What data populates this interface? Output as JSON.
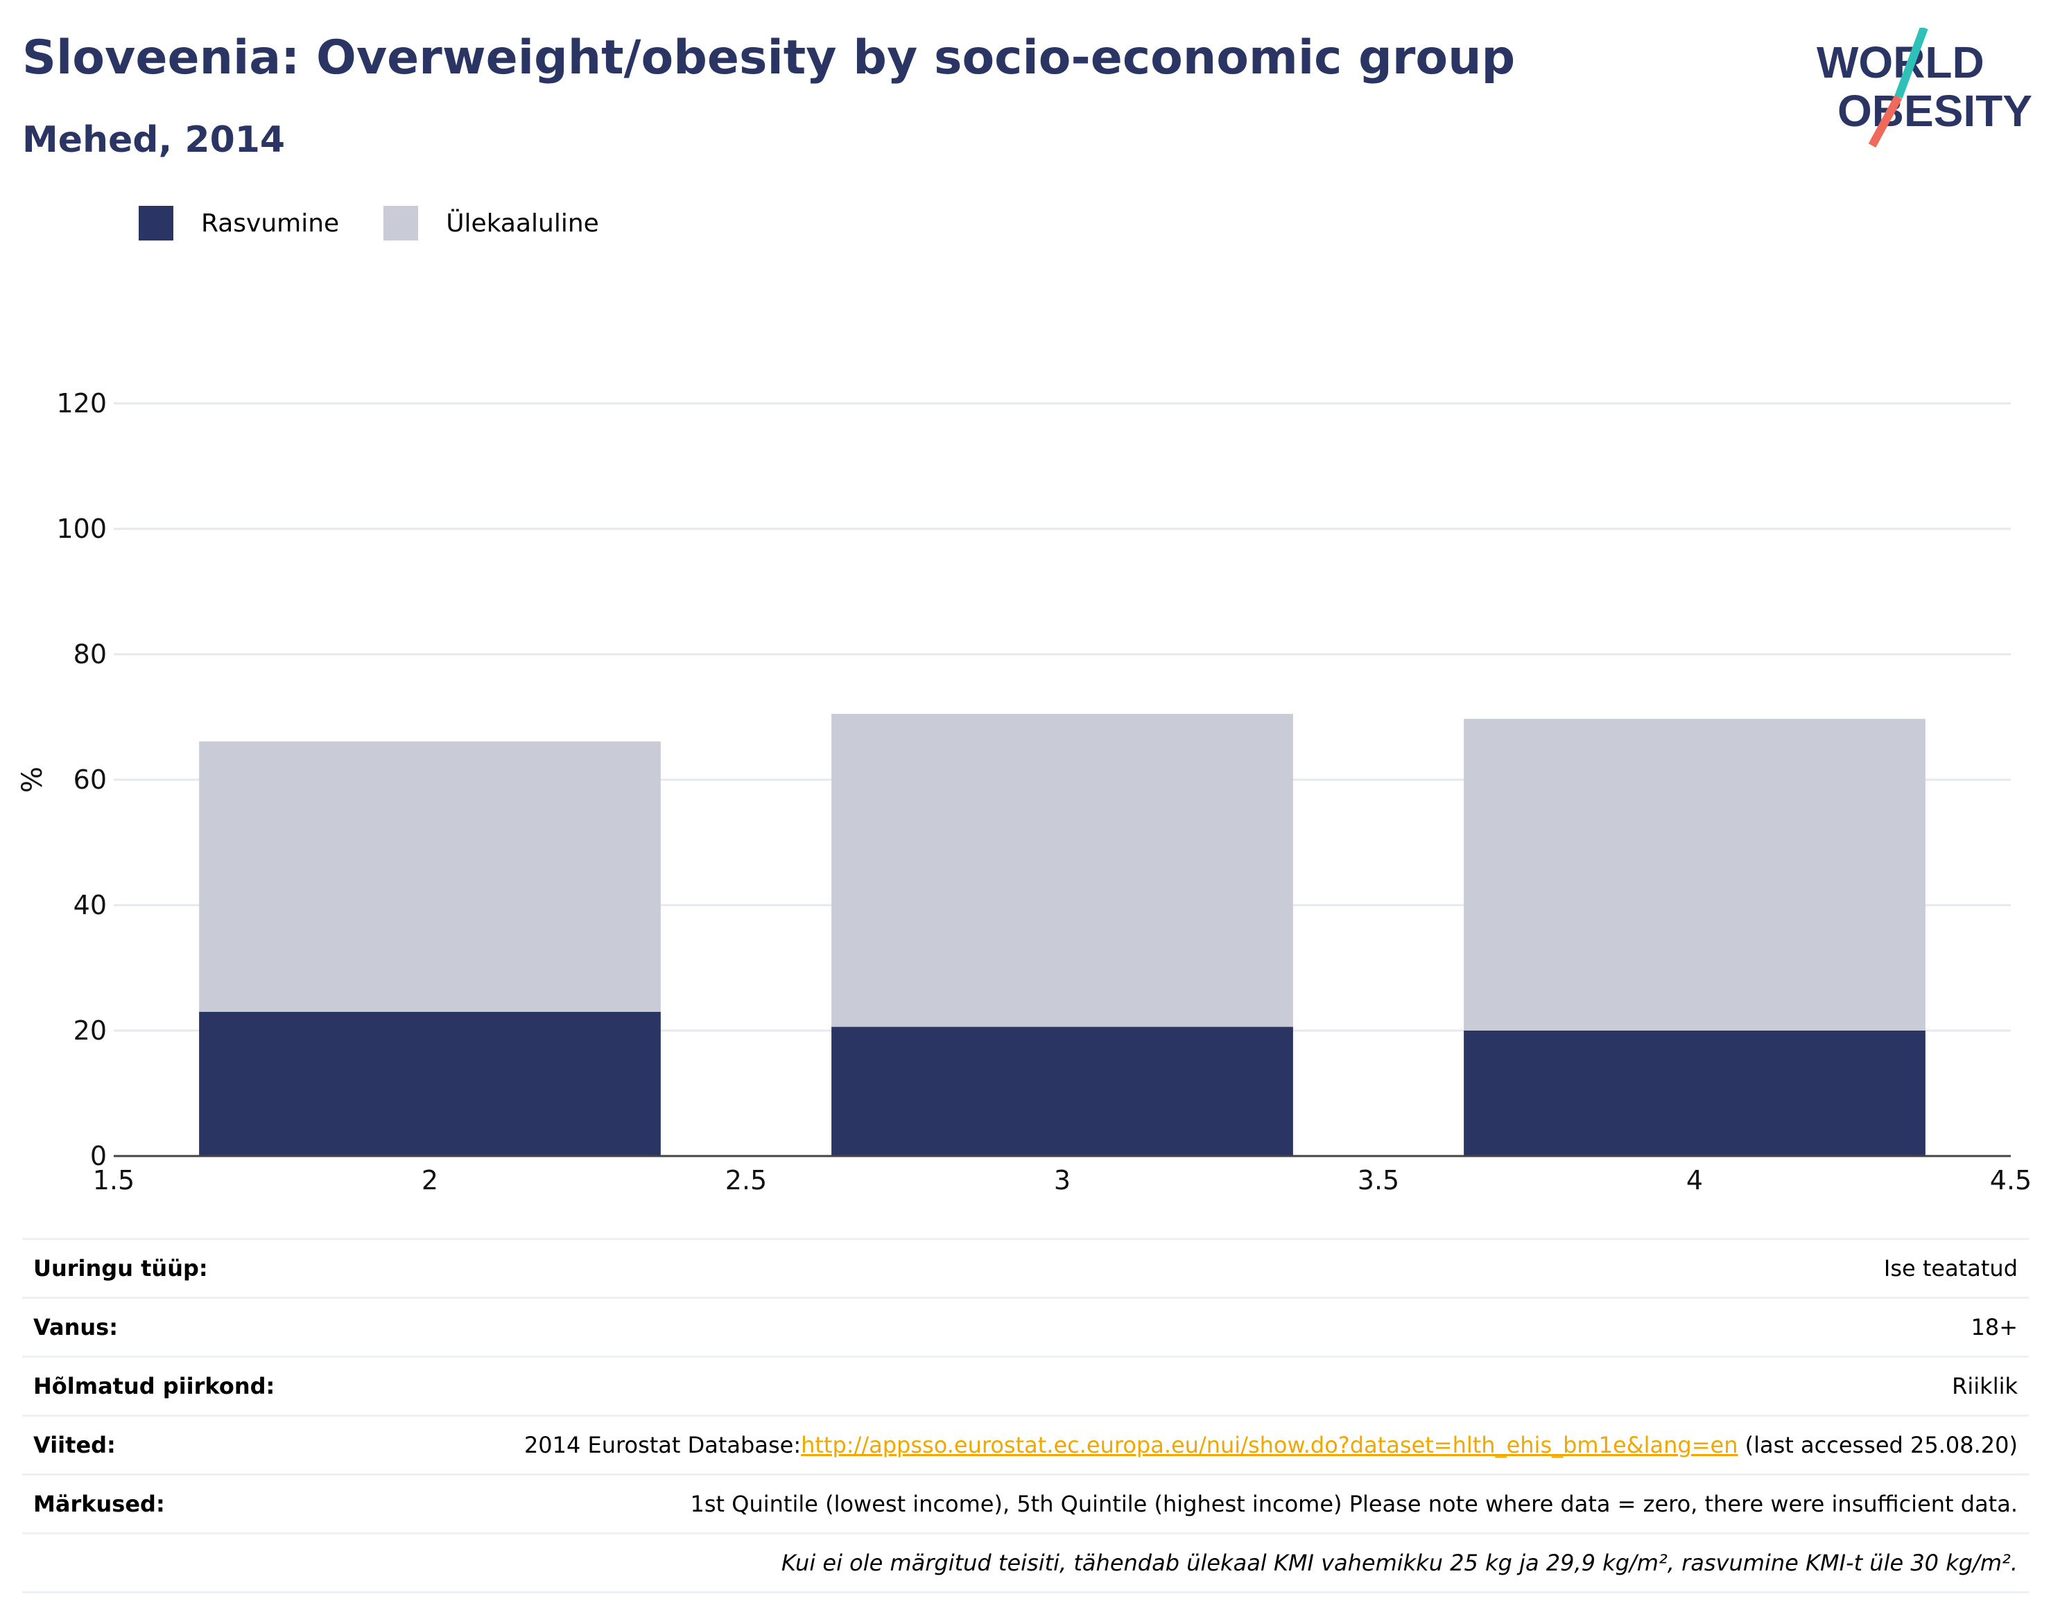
{
  "header": {
    "title": "Sloveenia: Overweight/obesity by socio-economic group",
    "subtitle": "Mehed, 2014"
  },
  "logo": {
    "line1": "WORLD",
    "line2": "OBESITY",
    "accent_teal": "#2fc1b7",
    "accent_coral": "#ef6a5a"
  },
  "colors": {
    "obesity": "#2a3563",
    "overweight": "#c9ccd6",
    "title": "#2a3563",
    "grid": "#e6e8ef",
    "link": "#f0a800"
  },
  "chart_data": {
    "type": "bar",
    "stacked": true,
    "x": [
      2,
      3,
      4
    ],
    "series": [
      {
        "name": "Rasvumine",
        "values": [
          23.0,
          20.6,
          20.0
        ]
      },
      {
        "name": "Ülekaaluline",
        "values": [
          43.1,
          49.9,
          49.7
        ]
      }
    ],
    "totals": [
      66.1,
      70.5,
      69.7
    ],
    "ylabel": "%",
    "ylim": [
      0,
      120
    ],
    "yticks": [
      0,
      20,
      40,
      60,
      80,
      100,
      120
    ],
    "xlim": [
      1.5,
      4.5
    ],
    "xticks": [
      "1.5",
      "2",
      "2.5",
      "3",
      "3.5",
      "4",
      "4.5"
    ],
    "legend": "top-left",
    "grid": true
  },
  "info": {
    "rows": [
      {
        "label": "Uuringu tüüp:",
        "value": "Ise teatatud"
      },
      {
        "label": "Vanus:",
        "value": "18+"
      },
      {
        "label": "Hõlmatud piirkond:",
        "value": "Riiklik"
      },
      {
        "label": "Viited:",
        "value_prefix": "2014 Eurostat Database:",
        "link": "http://appsso.eurostat.ec.europa.eu/nui/show.do?dataset=hlth_ehis_bm1e&lang=en",
        "value_suffix": " (last accessed 25.08.20)"
      },
      {
        "label": "Märkused:",
        "value": "1st Quintile (lowest income), 5th Quintile (highest income) Please note where data = zero, there were insufficient data."
      }
    ],
    "footnote": "Kui ei ole märgitud teisiti, tähendab ülekaal KMI vahemikku 25 kg ja 29,9 kg/m², rasvumine KMI-t üle 30 kg/m²."
  }
}
